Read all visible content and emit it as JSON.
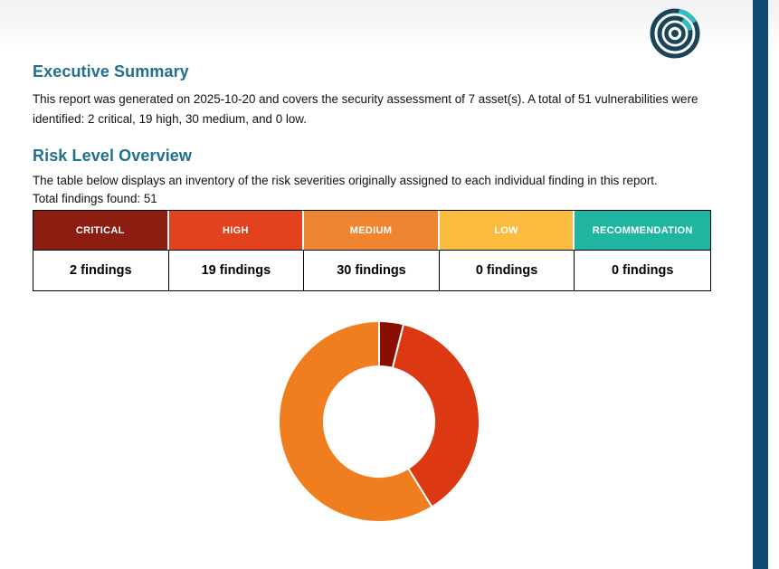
{
  "colors": {
    "accent_bar": "#0F4870",
    "heading": "#21708E",
    "logo_navy": "#1C4459",
    "logo_cyan": "#29C1CF"
  },
  "executive_summary": {
    "title": "Executive Summary",
    "body": "This report was generated on 2025-10-20 and covers the security assessment of 7 asset(s). A total of 51 vulnerabilities were identified: 2 critical, 19 high, 30 medium, and 0 low."
  },
  "risk_overview": {
    "title": "Risk Level Overview",
    "body": "The table below displays an inventory of the risk severities originally assigned to each individual finding in this report.",
    "total_findings": "Total findings found: 51"
  },
  "severity_table": {
    "headers": [
      "CRITICAL",
      "HIGH",
      "MEDIUM",
      "LOW",
      "RECOMMENDATION"
    ],
    "values": [
      "2 findings",
      "19 findings",
      "30 findings",
      "0 findings",
      "0 findings"
    ],
    "header_colors": [
      "#8B1D11",
      "#E3421E",
      "#EF8531",
      "#FABB3E",
      "#1FB5A0"
    ]
  },
  "chart_data": {
    "type": "pie",
    "subtype": "donut",
    "title": "",
    "legend": "none",
    "categories": [
      "Critical",
      "High",
      "Medium",
      "Low"
    ],
    "values": [
      2,
      19,
      30,
      0
    ],
    "colors": [
      "#8B0E04",
      "#DC3912",
      "#F07E1E",
      "#FABB3E"
    ],
    "total": 51,
    "start_angle_deg": -90,
    "direction": "clockwise",
    "inner_radius_ratio": 0.55
  }
}
